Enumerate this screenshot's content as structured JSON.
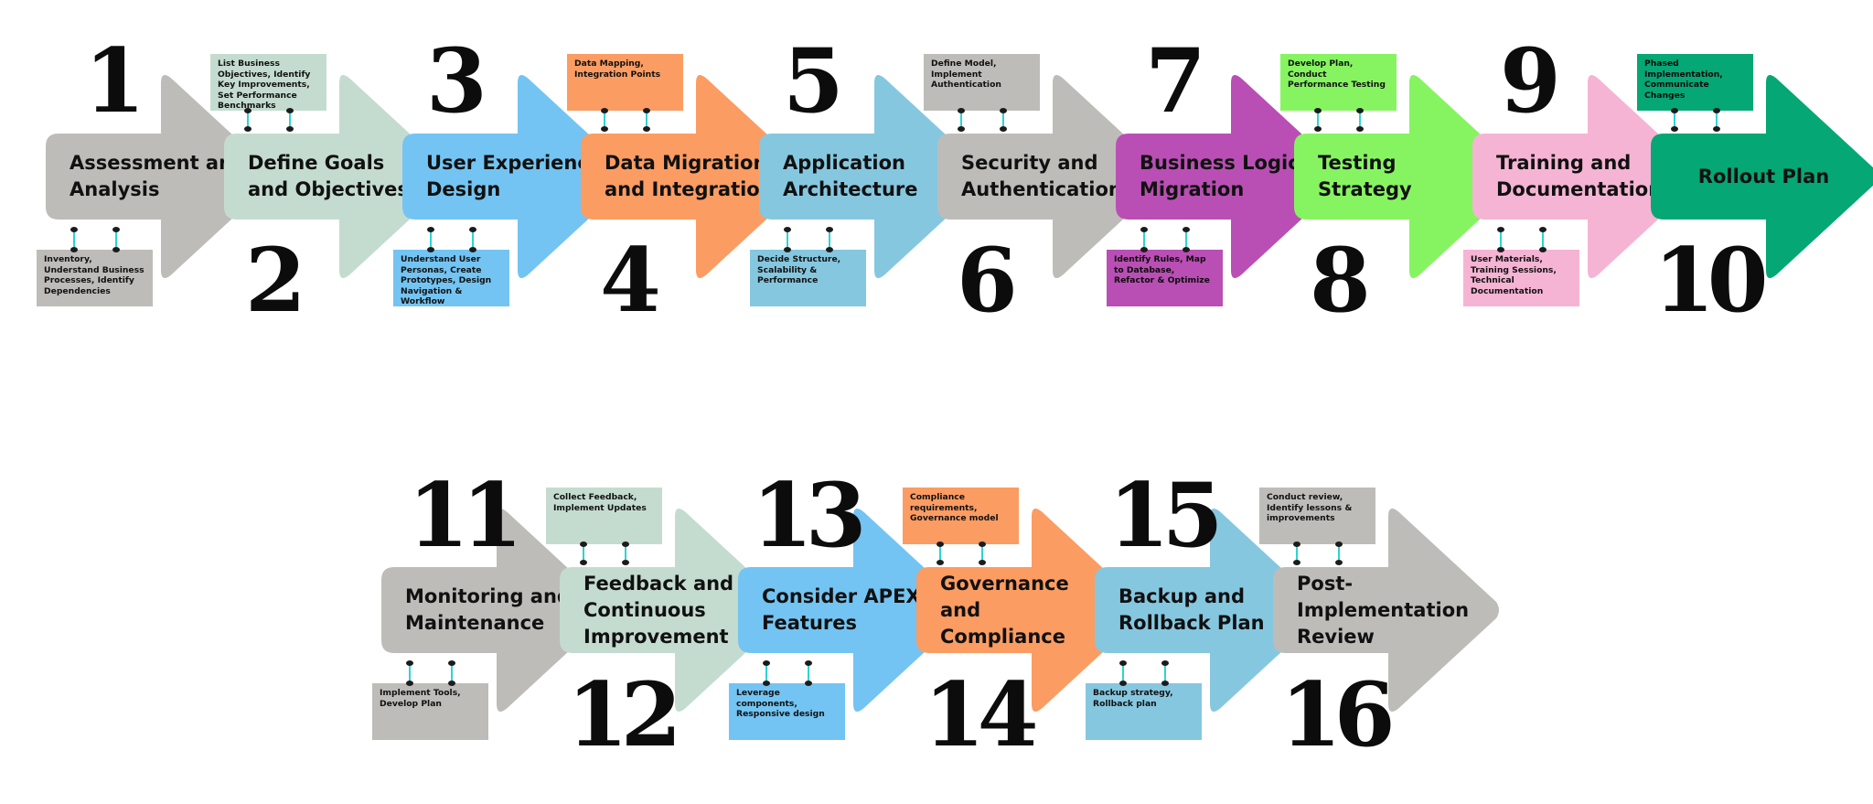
{
  "colors": {
    "gray": "#bdbcb9",
    "sage": "#c4dccf",
    "sky": "#73c4f2",
    "orange": "#fb9c63",
    "teal_blue": "#86c7e0",
    "purple": "#b94fb4",
    "lime": "#86f461",
    "pink": "#f5b4d4",
    "green": "#05a774",
    "connector": "#2fd3d3"
  },
  "steps": [
    {
      "number": "1",
      "title": "Assessment and\nAnalysis",
      "note": "Inventory, Understand Business Processes, Identify Dependencies",
      "color": "gray"
    },
    {
      "number": "2",
      "title": "Define Goals\nand Objectives",
      "note": "List Business Objectives, Identify Key Improvements, Set Performance Benchmarks",
      "color": "sage"
    },
    {
      "number": "3",
      "title": "User Experience\nDesign",
      "note": "Understand User Personas, Create Prototypes, Design Navigation & Workflow",
      "color": "sky"
    },
    {
      "number": "4",
      "title": "Data Migration\nand Integration",
      "note": "Data Mapping, Integration Points",
      "color": "orange"
    },
    {
      "number": "5",
      "title": "Application\nArchitecture",
      "note": "Decide Structure, Scalability & Performance",
      "color": "teal_blue"
    },
    {
      "number": "6",
      "title": "Security and\nAuthentication",
      "note": "Define Model, Implement Authentication",
      "color": "gray"
    },
    {
      "number": "7",
      "title": "Business Logic\nMigration",
      "note": "Identify Rules, Map to Database, Refactor & Optimize",
      "color": "purple"
    },
    {
      "number": "8",
      "title": "Testing Strategy",
      "note": "Develop Plan, Conduct Performance Testing",
      "color": "lime"
    },
    {
      "number": "9",
      "title": "Training and\nDocumentation",
      "note": "User Materials, Training Sessions, Technical Documentation",
      "color": "pink"
    },
    {
      "number": "10",
      "title": "Rollout Plan",
      "note": "Phased Implementation, Communicate Changes",
      "color": "green"
    },
    {
      "number": "11",
      "title": "Monitoring and\nMaintenance",
      "note": "Implement Tools, Develop Plan",
      "color": "gray"
    },
    {
      "number": "12",
      "title": "Feedback and\nContinuous\nImprovement",
      "note": "Collect Feedback, Implement Updates",
      "color": "sage"
    },
    {
      "number": "13",
      "title": "Consider APEX\nFeatures",
      "note": "Leverage components, Responsive design",
      "color": "sky"
    },
    {
      "number": "14",
      "title": "Governance\nand\nCompliance",
      "note": "Compliance requirements, Governance model",
      "color": "orange"
    },
    {
      "number": "15",
      "title": "Backup and\nRollback Plan",
      "note": "Backup strategy, Rollback plan",
      "color": "teal_blue"
    },
    {
      "number": "16",
      "title": "Post-\nImplementation\nReview",
      "note": "Conduct review, Identify lessons & improvements",
      "color": "gray"
    }
  ]
}
